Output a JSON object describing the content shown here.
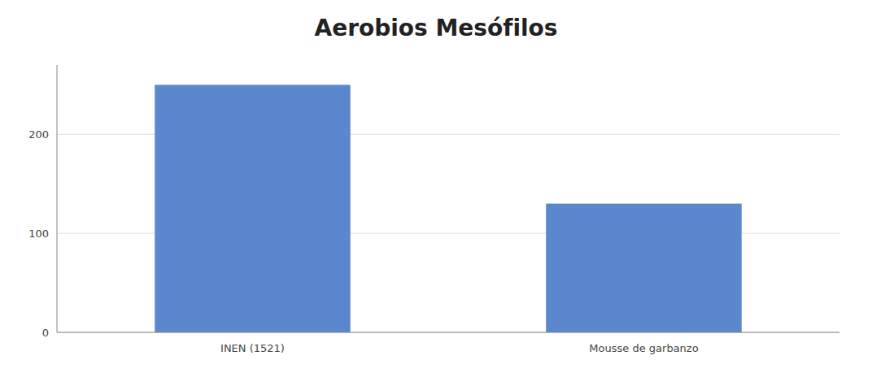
{
  "chart_data": {
    "type": "bar",
    "title": "Aerobios Mesófilos",
    "categories": [
      "INEN (1521)",
      "Mousse de garbanzo"
    ],
    "values": [
      250,
      130
    ],
    "color": "#5B88CC",
    "ylim": [
      0,
      270
    ],
    "yticks": [
      0,
      100,
      200
    ],
    "grid": true
  }
}
